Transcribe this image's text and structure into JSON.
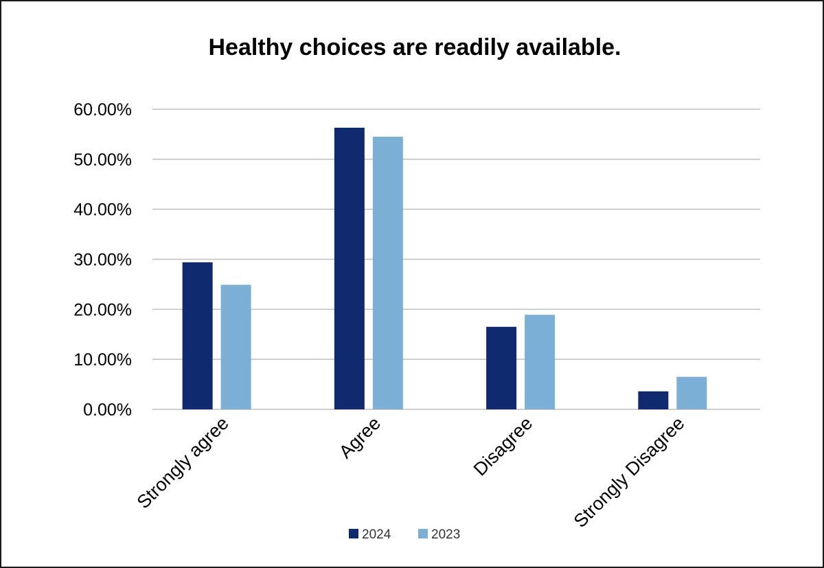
{
  "chart_data": {
    "type": "bar",
    "title": "Healthy choices are readily available.",
    "xlabel": "",
    "ylabel": "",
    "categories": [
      "Strongly agree",
      "Agree",
      "Disagree",
      "Strongly Disagree"
    ],
    "series": [
      {
        "name": "2024",
        "color": "#0f2a6e",
        "values": [
          29.4,
          56.3,
          16.5,
          3.6
        ]
      },
      {
        "name": "2023",
        "color": "#7bafd6",
        "values": [
          24.9,
          54.5,
          18.9,
          6.5
        ]
      }
    ],
    "ylim": [
      0,
      60
    ],
    "yticks": [
      0,
      10,
      20,
      30,
      40,
      50,
      60
    ],
    "ytick_labels": [
      "0.00%",
      "10.00%",
      "20.00%",
      "30.00%",
      "40.00%",
      "50.00%",
      "60.00%"
    ],
    "grid": true,
    "legend_position": "bottom-center"
  }
}
